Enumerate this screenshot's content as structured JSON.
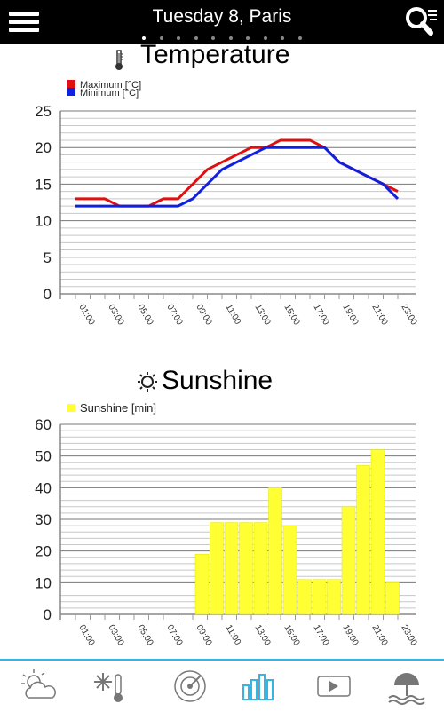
{
  "header": {
    "title": "Tuesday 8, Paris",
    "page_count": 10,
    "active_page": 0
  },
  "hours": [
    "01:00",
    "03:00",
    "05:00",
    "07:00",
    "09:00",
    "11:00",
    "13:00",
    "15:00",
    "17:00",
    "19:00",
    "21:00",
    "23:00"
  ],
  "temperature": {
    "title": "Temperature",
    "legend_max": "Maximum [°C]",
    "legend_min": "Minimum [°C]",
    "y_ticks": [
      "25",
      "20",
      "15",
      "10",
      "5",
      "0"
    ]
  },
  "sunshine": {
    "title": "Sunshine",
    "legend": "Sunshine [min]",
    "y_ticks": [
      "60",
      "50",
      "40",
      "30",
      "20",
      "10",
      "0"
    ]
  },
  "colors": {
    "max": "#e01010",
    "min": "#1020e0",
    "sun": "#ffff33",
    "accent": "#33b5e5"
  },
  "chart_data": [
    {
      "type": "line",
      "x": [
        "01:00",
        "02:00",
        "03:00",
        "04:00",
        "05:00",
        "06:00",
        "07:00",
        "08:00",
        "09:00",
        "10:00",
        "11:00",
        "12:00",
        "13:00",
        "14:00",
        "15:00",
        "16:00",
        "17:00",
        "18:00",
        "19:00",
        "20:00",
        "21:00",
        "22:00",
        "23:00"
      ],
      "series": [
        {
          "name": "Maximum [°C]",
          "values": [
            13,
            13,
            13,
            12,
            12,
            12,
            13,
            13,
            15,
            17,
            18,
            19,
            20,
            20,
            21,
            21,
            21,
            20,
            18,
            17,
            16,
            15,
            14
          ]
        },
        {
          "name": "Minimum [°C]",
          "values": [
            12,
            12,
            12,
            12,
            12,
            12,
            12,
            12,
            13,
            15,
            17,
            18,
            19,
            20,
            20,
            20,
            20,
            20,
            18,
            17,
            16,
            15,
            13
          ]
        }
      ],
      "ylim": [
        0,
        25
      ],
      "grid": true,
      "legend_placement": "top-left"
    },
    {
      "type": "bar",
      "categories": [
        "01:00",
        "02:00",
        "03:00",
        "04:00",
        "05:00",
        "06:00",
        "07:00",
        "08:00",
        "09:00",
        "10:00",
        "11:00",
        "12:00",
        "13:00",
        "14:00",
        "15:00",
        "16:00",
        "17:00",
        "18:00",
        "19:00",
        "20:00",
        "21:00",
        "22:00",
        "23:00"
      ],
      "series": [
        {
          "name": "Sunshine [min]",
          "values": [
            0,
            0,
            0,
            0,
            0,
            0,
            0,
            19,
            29,
            29,
            29,
            29,
            40,
            28,
            11,
            11,
            11,
            34,
            47,
            52,
            10,
            0,
            0
          ]
        }
      ],
      "ylim": [
        0,
        60
      ],
      "grid": true,
      "legend_placement": "top-left"
    }
  ],
  "tabs": [
    {
      "icon": "weather-cloud-sun-icon"
    },
    {
      "icon": "thermometer-snowflake-icon"
    },
    {
      "icon": "radar-icon"
    },
    {
      "icon": "bar-chart-icon"
    },
    {
      "icon": "video-player-icon"
    },
    {
      "icon": "beach-wave-icon"
    }
  ]
}
